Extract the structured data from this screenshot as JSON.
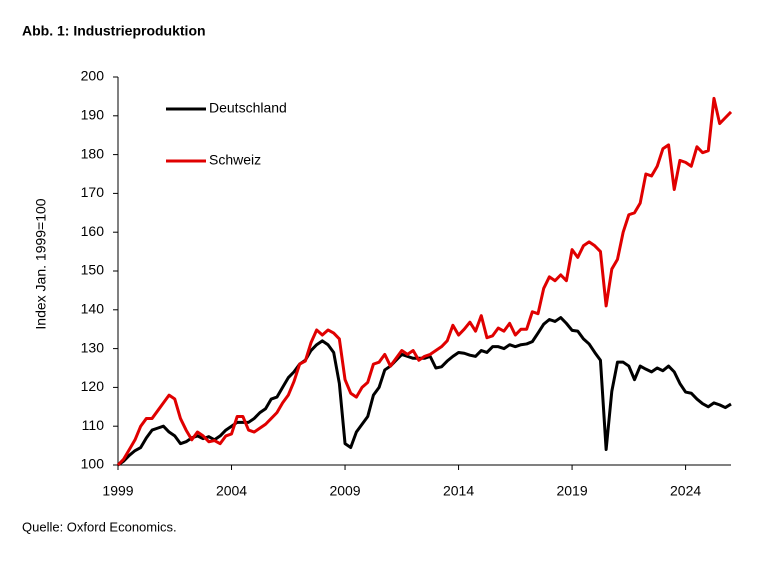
{
  "chart_data": {
    "type": "line",
    "title": "Abb. 1: Industrieproduktion",
    "y_label": "Index Jan. 1999=100",
    "source": "Quelle: Oxford Economics.",
    "legend": "upper left",
    "xlim": [
      1999,
      2026
    ],
    "xticks": [
      1999,
      2004,
      2009,
      2014,
      2019,
      2024
    ],
    "ylim": [
      100,
      200
    ],
    "yticks": [
      100,
      110,
      120,
      130,
      140,
      150,
      160,
      170,
      180,
      190,
      200
    ],
    "x": [
      1999,
      1999.25,
      1999.5,
      1999.75,
      2000,
      2000.25,
      2000.5,
      2000.75,
      2001,
      2001.25,
      2001.5,
      2001.75,
      2002,
      2002.25,
      2002.5,
      2002.75,
      2003,
      2003.25,
      2003.5,
      2003.75,
      2004,
      2004.25,
      2004.5,
      2004.75,
      2005,
      2005.25,
      2005.5,
      2005.75,
      2006,
      2006.25,
      2006.5,
      2006.75,
      2007,
      2007.25,
      2007.5,
      2007.75,
      2008,
      2008.25,
      2008.5,
      2008.75,
      2009,
      2009.25,
      2009.5,
      2009.75,
      2010,
      2010.25,
      2010.5,
      2010.75,
      2011,
      2011.25,
      2011.5,
      2011.75,
      2012,
      2012.25,
      2012.5,
      2012.75,
      2013,
      2013.25,
      2013.5,
      2013.75,
      2014,
      2014.25,
      2014.5,
      2014.75,
      2015,
      2015.25,
      2015.5,
      2015.75,
      2016,
      2016.25,
      2016.5,
      2016.75,
      2017,
      2017.25,
      2017.5,
      2017.75,
      2018,
      2018.25,
      2018.5,
      2018.75,
      2019,
      2019.25,
      2019.5,
      2019.75,
      2020,
      2020.25,
      2020.5,
      2020.75,
      2021,
      2021.25,
      2021.5,
      2021.75,
      2022,
      2022.25,
      2022.5,
      2022.75,
      2023,
      2023.25,
      2023.5,
      2023.75,
      2024,
      2024.25,
      2024.5,
      2024.75,
      2025,
      2025.25,
      2025.5,
      2025.75,
      2026
    ],
    "series": [
      {
        "name": "Deutschland",
        "color": "#000000",
        "values": [
          100,
          101,
          102.5,
          103.7,
          104.5,
          107,
          109,
          109.5,
          110,
          108.5,
          107.5,
          105.5,
          106,
          107,
          107.5,
          106.8,
          107.3,
          106.5,
          107.5,
          109,
          110,
          111,
          111,
          111,
          112,
          113.5,
          114.5,
          117,
          117.5,
          120,
          122.5,
          124,
          126,
          127,
          129.5,
          131,
          132,
          131,
          129,
          121,
          105.5,
          104.5,
          108.5,
          110.5,
          112.5,
          118,
          120,
          124.5,
          125.5,
          127,
          128.5,
          128,
          127.5,
          127.5,
          127.5,
          128,
          125,
          125.3,
          126.8,
          128,
          129,
          128.8,
          128.3,
          128,
          129.5,
          129,
          130.5,
          130.5,
          130,
          131,
          130.5,
          131,
          131.2,
          131.8,
          134,
          136.3,
          137.5,
          137,
          138,
          136.5,
          134.7,
          134.5,
          132.5,
          131.2,
          129,
          127,
          104,
          119,
          126.5,
          126.5,
          125.5,
          122,
          125.5,
          124.7,
          124,
          125,
          124.3,
          125.5,
          124,
          121,
          118.8,
          118.5,
          117,
          115.8,
          115,
          116,
          115.5,
          114.8,
          115.7
        ]
      },
      {
        "name": "Schweiz",
        "color": "#e00000",
        "values": [
          100,
          101.5,
          104,
          106.5,
          110,
          112,
          112,
          114,
          116,
          118,
          117,
          112,
          109,
          106.5,
          108.5,
          107.5,
          106,
          106.3,
          105.5,
          107.5,
          108,
          112.5,
          112.5,
          109,
          108.5,
          109.5,
          110.5,
          112,
          113.5,
          116,
          118,
          121.5,
          126,
          126.8,
          131.5,
          134.8,
          133.5,
          134.8,
          134,
          132.5,
          122,
          118.5,
          117.5,
          120,
          121.3,
          126,
          126.5,
          128.5,
          125.5,
          127.5,
          129.5,
          128.5,
          129.5,
          127,
          128,
          128.5,
          129.5,
          130.5,
          132,
          136,
          133.5,
          135,
          136.8,
          134.5,
          138.5,
          132.8,
          133.3,
          135.3,
          134.5,
          136.5,
          133.5,
          135,
          135,
          139.5,
          139,
          145.5,
          148.5,
          147.5,
          149,
          147.5,
          155.5,
          153.5,
          156.5,
          157.5,
          156.5,
          155,
          141,
          150.5,
          153,
          160,
          164.5,
          165,
          167.5,
          175,
          174.5,
          177,
          181.5,
          182.5,
          171,
          178.5,
          178,
          177,
          182,
          180.5,
          181,
          194.5,
          188,
          189.5,
          191
        ]
      }
    ]
  }
}
